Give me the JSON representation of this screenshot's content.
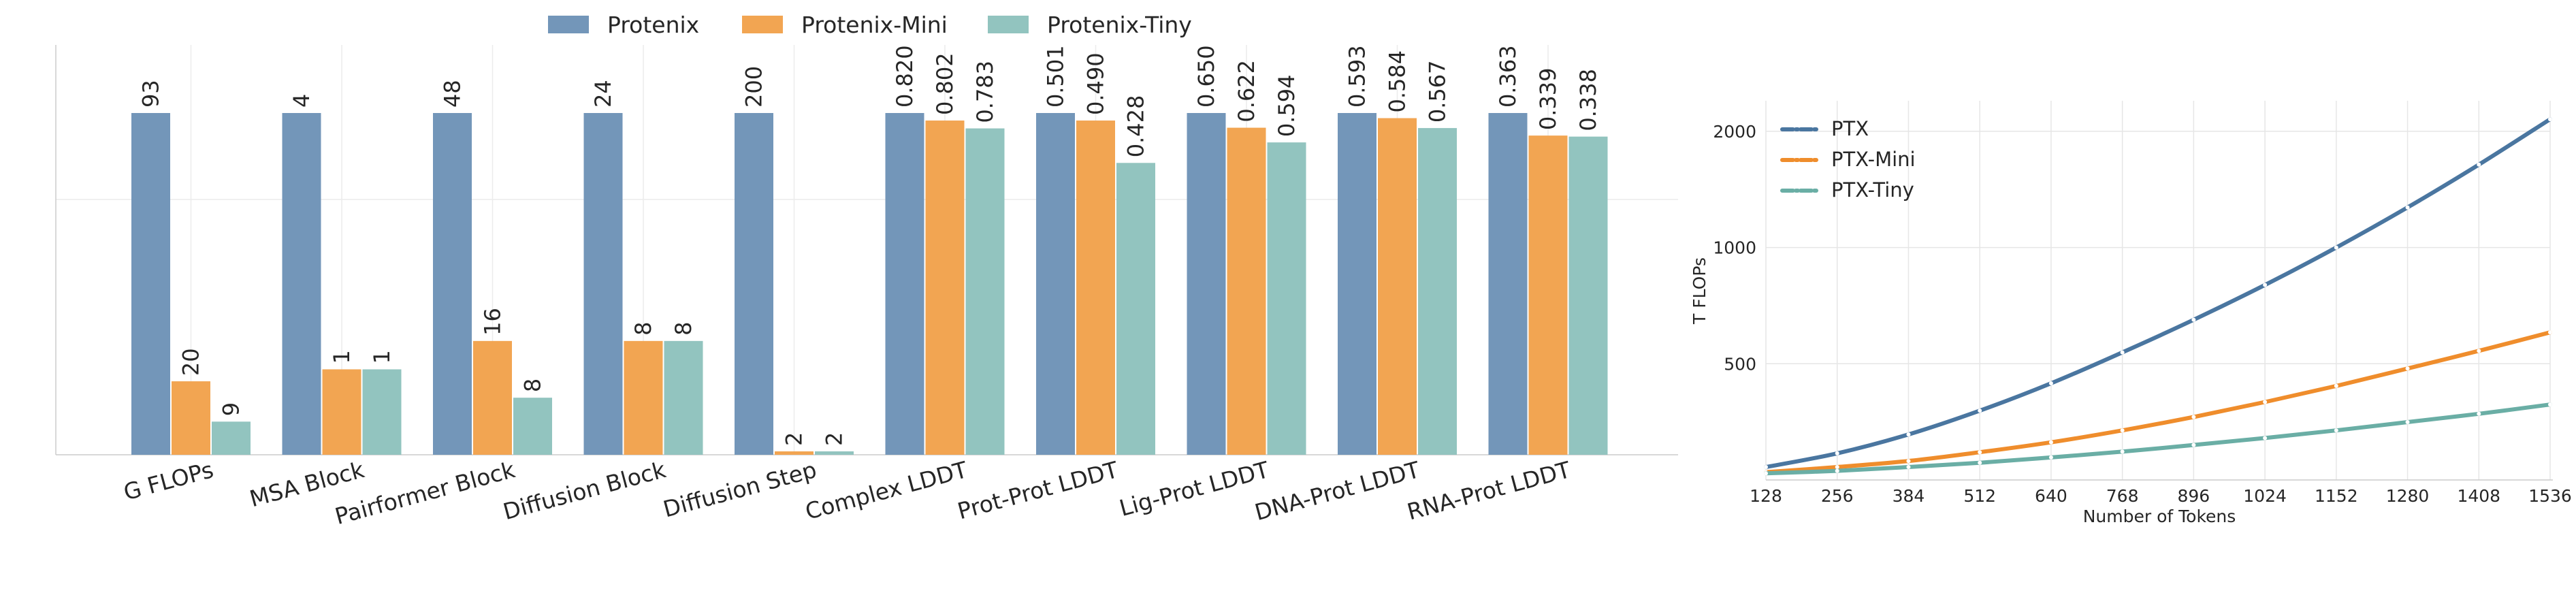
{
  "colors": {
    "protenix": "#7396b9",
    "protenix_mini": "#f2a552",
    "protenix_tiny": "#92c4bf",
    "ptx_line": "#4a76a0",
    "ptx_mini_line": "#ef8d2c",
    "ptx_tiny_line": "#6aaea5"
  },
  "chart_data": [
    {
      "type": "bar",
      "title": "",
      "xlabel": "",
      "ylabel": "",
      "categories": [
        "G FLOPs",
        "MSA Block",
        "Pairformer Block",
        "Diffusion Block",
        "Diffusion Step",
        "Complex LDDT",
        "Prot-Prot LDDT",
        "Lig-Prot LDDT",
        "DNA-Prot LDDT",
        "RNA-Prot LDDT"
      ],
      "legend_position": "top-center",
      "grid": "light",
      "series": [
        {
          "name": "Protenix",
          "values": [
            93,
            4,
            48,
            24,
            200,
            0.82,
            0.501,
            0.65,
            0.593,
            0.363
          ],
          "labels": [
            "93",
            "4",
            "48",
            "24",
            "200",
            "0.820",
            "0.501",
            "0.650",
            "0.593",
            "0.363"
          ],
          "normalized_height": [
            1.0,
            1.0,
            1.0,
            1.0,
            1.0,
            1.0,
            1.0,
            1.0,
            1.0,
            1.0
          ]
        },
        {
          "name": "Protenix-Mini",
          "values": [
            20,
            1,
            16,
            8,
            2,
            0.802,
            0.49,
            0.622,
            0.584,
            0.339
          ],
          "labels": [
            "20",
            "1",
            "16",
            "8",
            "2",
            "0.802",
            "0.490",
            "0.622",
            "0.584",
            "0.339"
          ],
          "normalized_height": [
            0.215,
            0.25,
            0.333,
            0.333,
            0.01,
            0.978,
            0.978,
            0.957,
            0.985,
            0.934
          ]
        },
        {
          "name": "Protenix-Tiny",
          "values": [
            9,
            1,
            8,
            8,
            2,
            0.783,
            0.428,
            0.594,
            0.567,
            0.338
          ],
          "labels": [
            "9",
            "1",
            "8",
            "8",
            "2",
            "0.783",
            "0.428",
            "0.594",
            "0.567",
            "0.338"
          ],
          "normalized_height": [
            0.097,
            0.25,
            0.167,
            0.333,
            0.01,
            0.955,
            0.854,
            0.914,
            0.956,
            0.931
          ]
        }
      ]
    },
    {
      "type": "line",
      "title": "",
      "xlabel": "Number of Tokens",
      "ylabel": "T FLOPs",
      "x": [
        128,
        256,
        384,
        512,
        640,
        768,
        896,
        1024,
        1152,
        1280,
        1408,
        1536
      ],
      "xticks": [
        "128",
        "256",
        "384",
        "512",
        "640",
        "768",
        "896",
        "1024",
        "1152",
        "1280",
        "1408",
        "1536"
      ],
      "yticks": [
        "500",
        "1000",
        "2000"
      ],
      "y_scale": "log",
      "xlim": [
        128,
        1536
      ],
      "ylim": [
        250,
        2400
      ],
      "legend_position": "top-left",
      "grid": "on",
      "series": [
        {
          "name": "PTX",
          "values": [
            270,
            293,
            328,
            378,
            445,
            535,
            650,
            800,
            1000,
            1270,
            1640,
            2150
          ]
        },
        {
          "name": "PTX-Mini",
          "values": [
            262,
            270,
            280,
            295,
            313,
            336,
            364,
            398,
            438,
            486,
            540,
            603
          ]
        },
        {
          "name": "PTX-Tiny",
          "values": [
            260,
            264,
            270,
            277,
            286,
            296,
            308,
            321,
            336,
            353,
            371,
            392
          ]
        }
      ]
    }
  ]
}
